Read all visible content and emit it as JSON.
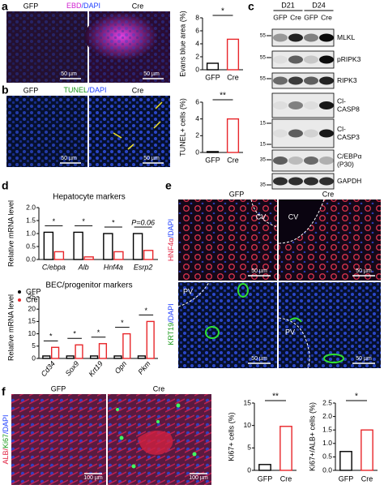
{
  "panel_labels": [
    "a",
    "b",
    "c",
    "d",
    "e",
    "f"
  ],
  "images": {
    "a": {
      "left": "GFP",
      "stain": [
        "EBD",
        "/DAPI"
      ],
      "right": "Cre",
      "scale": [
        "50 µm",
        "50 µm"
      ]
    },
    "b": {
      "left": "GFP",
      "stain": [
        "TUNEL",
        "/DAPI"
      ],
      "right": "Cre",
      "scale": [
        "50 µm",
        "50 µm"
      ]
    },
    "e": {
      "left": "GFP",
      "right": "Cre",
      "zones": [
        "CV",
        "CV",
        "PV",
        "PV"
      ],
      "stains": [
        [
          "HNF4α",
          "/DAPI"
        ],
        [
          "KRT19",
          "/DAPI"
        ]
      ],
      "scale": [
        "50 µm",
        "50 µm",
        "50 µm",
        "50 µm"
      ]
    },
    "f": {
      "left": "GFP",
      "right": "Cre",
      "stain": [
        "ALB",
        "/",
        "Ki67",
        "/DAPI"
      ],
      "scale": [
        "100 µm",
        "100 µm"
      ]
    }
  },
  "blot": {
    "timepoints": [
      "D21",
      "D24"
    ],
    "lanes": [
      "GFP",
      "Cre",
      "GFP",
      "Cre"
    ],
    "markers": [
      "55",
      "55",
      "55",
      "15",
      "15",
      "35",
      "35"
    ],
    "rows": [
      [
        "MLKL"
      ],
      [
        "pRIPK3"
      ],
      [
        "RIPK3"
      ],
      [
        "Cl-",
        "CASP8"
      ],
      [
        "Cl-",
        "CASP3"
      ],
      [
        "C/EBPα",
        "(P30)"
      ],
      [
        "GAPDH"
      ]
    ]
  },
  "chart_data": [
    {
      "type": "bar",
      "y_label": "Evans blue area (%)",
      "categories": [
        "GFP",
        "Cre"
      ],
      "values": [
        1.0,
        4.7
      ],
      "colors": [
        "#000000",
        "#e8262a"
      ],
      "ylim": [
        0,
        8
      ],
      "yticks": [
        0,
        2,
        4,
        6,
        8
      ],
      "annotation": "*"
    },
    {
      "type": "bar",
      "y_label": "TUNEL+ cells (%)",
      "categories": [
        "GFP",
        "Cre"
      ],
      "values": [
        0.1,
        4.0
      ],
      "colors": [
        "#000000",
        "#e8262a"
      ],
      "ylim": [
        0,
        6
      ],
      "yticks": [
        0,
        2,
        4,
        6
      ],
      "annotation": "**"
    },
    {
      "type": "bar",
      "title": "Hepatocyte markers",
      "y_label": "Relative mRNA level",
      "categories": [
        "C/ebpa",
        "Alb",
        "Hnf4a",
        "Esrp2"
      ],
      "series": [
        {
          "color": "#000000",
          "values": [
            1.05,
            1.05,
            1.0,
            1.0
          ]
        },
        {
          "color": "#e8262a",
          "values": [
            0.3,
            0.1,
            0.3,
            0.35
          ]
        }
      ],
      "ylim": [
        0,
        2
      ],
      "yticks": [
        {
          "value": 0,
          "label": "0.0"
        },
        0.5,
        {
          "value": 1,
          "label": "1.0"
        },
        1.5,
        {
          "value": 2,
          "label": "2.0"
        }
      ],
      "annotations": [
        "*",
        "*",
        "*",
        "P=0.06"
      ]
    },
    {
      "type": "bar",
      "title": "BEC/progenitor markers",
      "y_label": "Relative mRNA level",
      "categories": [
        "Cd34",
        "Sox9",
        "Krt19",
        "Opn",
        "Pkm"
      ],
      "series": [
        {
          "name": "GFP",
          "color": "#000000",
          "values": [
            1,
            1,
            1,
            1,
            1
          ]
        },
        {
          "name": "Cre",
          "color": "#e8262a",
          "values": [
            4.5,
            5.5,
            6,
            10,
            15
          ]
        }
      ],
      "ylim": [
        0,
        25
      ],
      "yticks": [
        0,
        5,
        10,
        15,
        20,
        25
      ],
      "annotations": [
        "*",
        "*",
        "*",
        "*",
        "*"
      ],
      "legend": "upper left"
    },
    {
      "type": "bar",
      "y_label": "Ki67+ cells (%)",
      "categories": [
        "GFP",
        "Cre"
      ],
      "values": [
        1.3,
        9.8
      ],
      "colors": [
        "#000000",
        "#e8262a"
      ],
      "ylim": [
        0,
        15
      ],
      "yticks": [
        0,
        5,
        10,
        15
      ],
      "annotation": "**"
    },
    {
      "type": "bar",
      "y_label": "Ki67+/ALB+ cells (%)",
      "categories": [
        "GFP",
        "Cre"
      ],
      "values": [
        0.7,
        1.5
      ],
      "colors": [
        "#000000",
        "#e8262a"
      ],
      "ylim": [
        0,
        2.5
      ],
      "yticks": [
        {
          "value": 0,
          "label": "0.0"
        },
        0.5,
        {
          "value": 1,
          "label": "1.0"
        },
        1.5,
        {
          "value": 2,
          "label": "2.0"
        },
        2.5
      ],
      "annotation": "*"
    }
  ]
}
